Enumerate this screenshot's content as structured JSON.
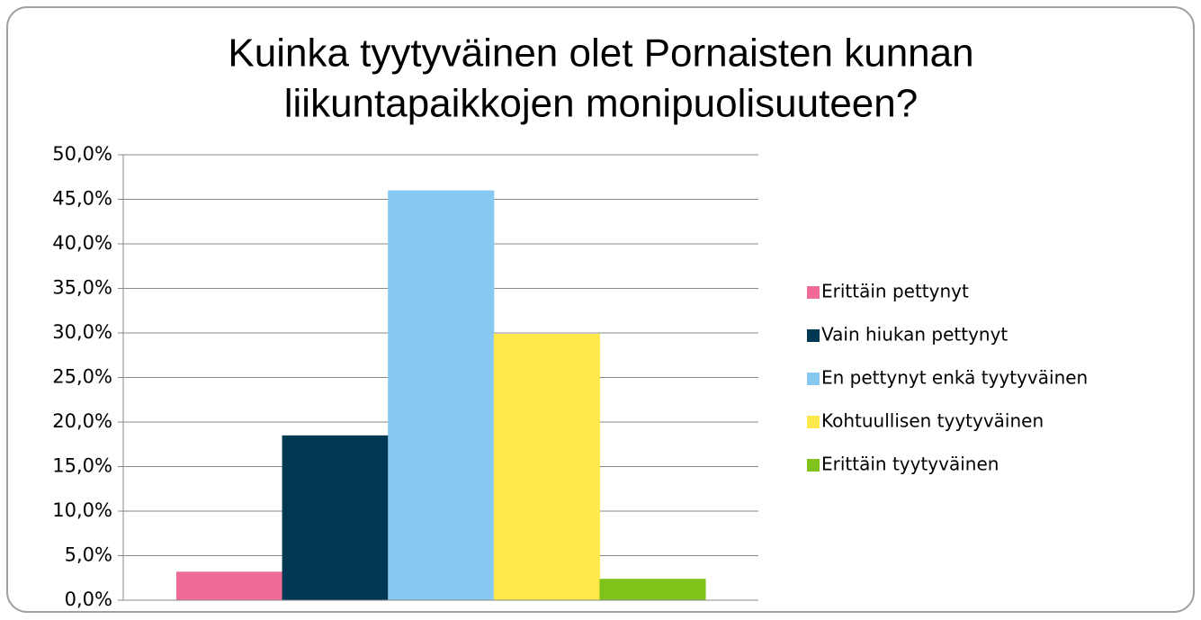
{
  "chart_data": {
    "type": "bar",
    "title": [
      "Kuinka tyytyväinen olet Pornaisten kunnan",
      "liikuntapaikkojen monipuolisuuteen?"
    ],
    "categories": [
      null
    ],
    "series": [
      {
        "name": "Erittäin pettynyt",
        "color": "#f06c96",
        "values": [
          3.2
        ]
      },
      {
        "name": "Vain hiukan pettynyt",
        "color": "#003753",
        "values": [
          18.5
        ]
      },
      {
        "name": "En pettynyt enkä tyytyväinen",
        "color": "#87c8f0",
        "values": [
          46.0
        ]
      },
      {
        "name": "Kohtuullisen tyytyväinen",
        "color": "#ffe94a",
        "values": [
          29.9
        ]
      },
      {
        "name": "Erittäin tyytyväinen",
        "color": "#7fc31b",
        "values": [
          2.4
        ]
      }
    ],
    "ylim": [
      0,
      50
    ],
    "yticks": [
      {
        "value": 0,
        "label": "0,0%"
      },
      {
        "value": 5,
        "label": "5,0%"
      },
      {
        "value": 10,
        "label": "10,0%"
      },
      {
        "value": 15,
        "label": "15,0%"
      },
      {
        "value": 20,
        "label": "20,0%"
      },
      {
        "value": 25,
        "label": "25,0%"
      },
      {
        "value": 30,
        "label": "30,0%"
      },
      {
        "value": 35,
        "label": "35,0%"
      },
      {
        "value": 40,
        "label": "40,0%"
      },
      {
        "value": 45,
        "label": "45,0%"
      },
      {
        "value": 50,
        "label": "50,0%"
      }
    ],
    "grid": true,
    "legend": "right"
  }
}
